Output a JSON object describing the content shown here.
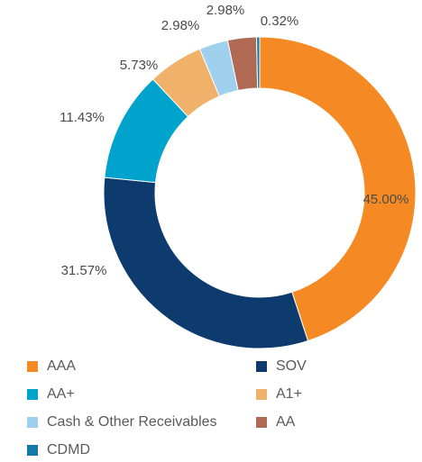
{
  "chart_data": {
    "type": "pie",
    "donut": true,
    "title": "",
    "slices": [
      {
        "label": "AAA",
        "value": 45.0,
        "display": "45.00%",
        "color": "#f58a24"
      },
      {
        "label": "SOV",
        "value": 31.57,
        "display": "31.57%",
        "color": "#0d3b6e"
      },
      {
        "label": "AA+",
        "value": 11.43,
        "display": "11.43%",
        "color": "#00a3cc"
      },
      {
        "label": "A1+",
        "value": 5.73,
        "display": "5.73%",
        "color": "#f0b26b"
      },
      {
        "label": "Cash & Other Receivables",
        "value": 2.98,
        "display": "2.98%",
        "color": "#9fd1ef"
      },
      {
        "label": "AA",
        "value": 2.98,
        "display": "2.98%",
        "color": "#b06a54"
      },
      {
        "label": "CDMD",
        "value": 0.32,
        "display": "0.32%",
        "color": "#1279a8"
      }
    ],
    "legend": {
      "placement": "bottom",
      "columns": 2,
      "order": [
        "AAA",
        "SOV",
        "AA+",
        "A1+",
        "Cash & Other Receivables",
        "AA",
        "CDMD"
      ]
    }
  }
}
